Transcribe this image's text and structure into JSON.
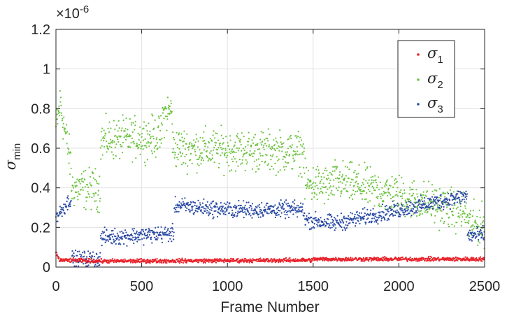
{
  "chart_data": {
    "type": "scatter",
    "title": "",
    "xlabel": "Frame Number",
    "ylabel_main": "σ",
    "ylabel_sub": "min",
    "y_exponent_label": "×10",
    "y_exponent_power": "-6",
    "xlim": [
      0,
      2500
    ],
    "ylim": [
      0,
      1.2
    ],
    "xticks": [
      "0",
      "500",
      "1000",
      "1500",
      "2000",
      "2500"
    ],
    "yticks": [
      "0",
      "0.2",
      "0.4",
      "0.6",
      "0.8",
      "1",
      "1.2"
    ],
    "grid": true,
    "legend_position": "top-right",
    "x_step": 2,
    "series": [
      {
        "name": "σ1",
        "name_main": "σ",
        "name_sub": "1",
        "color": "#e8222a",
        "spread": 0.005,
        "segments": [
          {
            "x": [
              0,
              20
            ],
            "y": [
              0.07,
              0.04
            ]
          },
          {
            "x": [
              20,
              300
            ],
            "y": [
              0.035,
              0.03
            ]
          },
          {
            "x": [
              300,
              1500
            ],
            "y": [
              0.03,
              0.035
            ]
          },
          {
            "x": [
              1500,
              2500
            ],
            "y": [
              0.04,
              0.04
            ]
          }
        ]
      },
      {
        "name": "σ2",
        "name_main": "σ",
        "name_sub": "2",
        "color": "#6cc33f",
        "spread": 0.05,
        "segments": [
          {
            "x": [
              0,
              30
            ],
            "y": [
              0.7,
              0.85
            ]
          },
          {
            "x": [
              30,
              90
            ],
            "y": [
              0.8,
              0.5
            ]
          },
          {
            "x": [
              90,
              260
            ],
            "y": [
              0.4,
              0.39
            ]
          },
          {
            "x": [
              260,
              620
            ],
            "y": [
              0.64,
              0.66
            ]
          },
          {
            "x": [
              620,
              680
            ],
            "y": [
              0.76,
              0.8
            ]
          },
          {
            "x": [
              680,
              1450
            ],
            "y": [
              0.6,
              0.58
            ]
          },
          {
            "x": [
              1450,
              1620
            ],
            "y": [
              0.42,
              0.41
            ]
          },
          {
            "x": [
              1620,
              2200
            ],
            "y": [
              0.44,
              0.32
            ]
          },
          {
            "x": [
              2200,
              2400
            ],
            "y": [
              0.32,
              0.27
            ]
          },
          {
            "x": [
              2400,
              2500
            ],
            "y": [
              0.22,
              0.21
            ]
          }
        ]
      },
      {
        "name": "σ3",
        "name_main": "σ",
        "name_sub": "3",
        "color": "#2a4aa4",
        "spread": 0.02,
        "segments": [
          {
            "x": [
              0,
              90
            ],
            "y": [
              0.25,
              0.35
            ]
          },
          {
            "x": [
              90,
              260
            ],
            "y": [
              0.04,
              0.04
            ]
          },
          {
            "x": [
              260,
              690
            ],
            "y": [
              0.15,
              0.17
            ]
          },
          {
            "x": [
              690,
              1000
            ],
            "y": [
              0.31,
              0.29
            ]
          },
          {
            "x": [
              1000,
              1450
            ],
            "y": [
              0.29,
              0.29
            ]
          },
          {
            "x": [
              1450,
              1620
            ],
            "y": [
              0.24,
              0.22
            ]
          },
          {
            "x": [
              1620,
              2400
            ],
            "y": [
              0.22,
              0.36
            ]
          },
          {
            "x": [
              2400,
              2500
            ],
            "y": [
              0.16,
              0.16
            ]
          }
        ]
      }
    ]
  }
}
